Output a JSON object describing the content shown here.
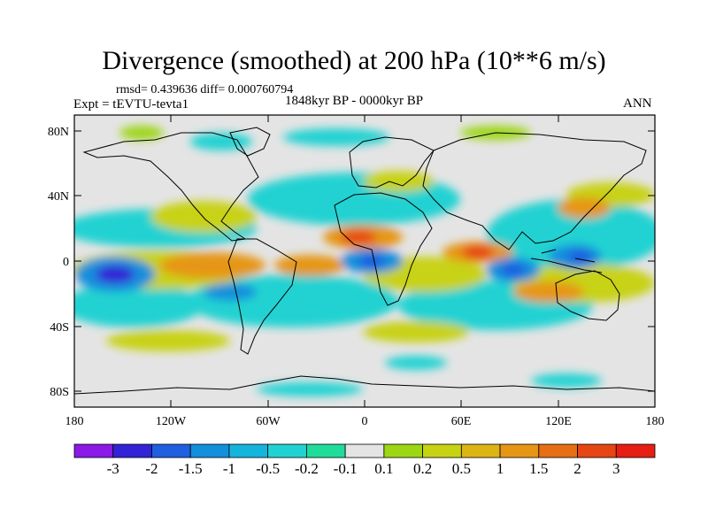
{
  "title": "Divergence (smoothed) at 200 hPa (10**6 m/s)",
  "stats": "rmsd= 0.439636 diff= 0.000760794",
  "experiment": "Expt = tEVTU-tevta1",
  "period": "1848kyr BP - 0000kyr BP",
  "season": "ANN",
  "lat_labels": [
    "80N",
    "40N",
    "0",
    "40S",
    "80S"
  ],
  "lon_labels": [
    "180",
    "120W",
    "60W",
    "0",
    "60E",
    "120E",
    "180"
  ],
  "colorbar": {
    "colors": [
      "#8B1AE6",
      "#3223D6",
      "#1F5FE0",
      "#138FDC",
      "#14B4DC",
      "#22D2D2",
      "#20DC9A",
      "#E4E4E4",
      "#9CD614",
      "#C8D214",
      "#DCB414",
      "#E69614",
      "#E66E14",
      "#E64614",
      "#E61E14"
    ],
    "labels": [
      "-3",
      "-2",
      "-1.5",
      "-1",
      "-0.5",
      "-0.2",
      "-0.1",
      "0.1",
      "0.2",
      "0.5",
      "1",
      "1.5",
      "2",
      "3"
    ]
  },
  "colors": {
    "background": "#E4E4E4"
  }
}
